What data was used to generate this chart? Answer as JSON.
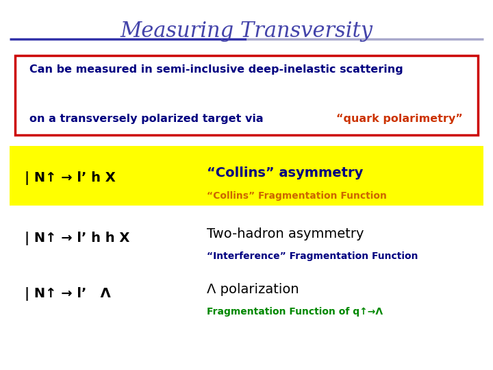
{
  "title": "Measuring Transversity",
  "title_color": "#4444aa",
  "title_fontsize": 22,
  "bg_color": "#ffffff",
  "box_text_line1": "Can be measured in semi-inclusive deep-inelastic scattering",
  "box_text_line2_before": "on a transversely polarized target via ",
  "box_text_line2_highlight": "“quark polarimetry”",
  "box_text_line2_after": ":",
  "box_text_color": "#000080",
  "box_highlight_color": "#cc3300",
  "box_border_color": "#cc0000",
  "yellow_bg": "#ffff00",
  "row1_formula": "| N↑ → l’ h X",
  "row1_label": "“Collins” asymmetry",
  "row1_sublabel": "“Collins” Fragmentation Function",
  "row1_label_color": "#000080",
  "row1_sublabel_color": "#cc6600",
  "row2_formula": "| N↑ → l’ h h X",
  "row2_label": "Two-hadron asymmetry",
  "row2_sublabel": "“Interference” Fragmentation Function",
  "row2_label_color": "#000000",
  "row2_sublabel_color": "#000080",
  "row3_formula": "| N↑ → l’   Λ",
  "row3_label": "Λ polarization",
  "row3_sublabel": "Fragmentation Function of q↑→Λ",
  "row3_label_color": "#000000",
  "row3_sublabel_color": "#008800"
}
